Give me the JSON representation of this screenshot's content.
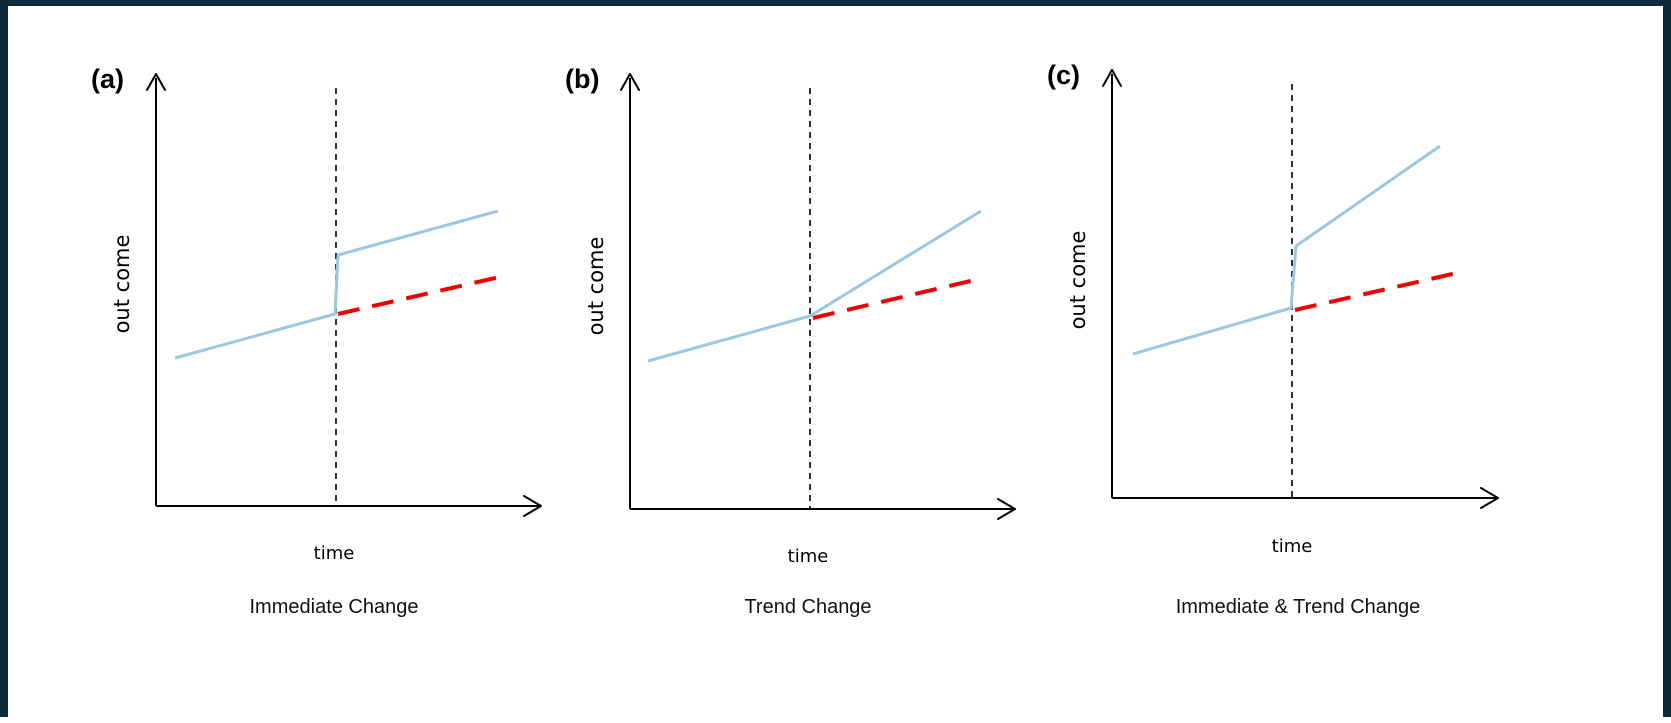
{
  "panels": [
    {
      "id": "a",
      "label": "(a)",
      "ylabel": "out come",
      "xlabel": "time",
      "caption": "Immediate Change",
      "type": "immediate"
    },
    {
      "id": "b",
      "label": "(b)",
      "ylabel": "out come",
      "xlabel": "time",
      "caption": "Trend Change",
      "type": "trend"
    },
    {
      "id": "c",
      "label": "(c)",
      "ylabel": "out come",
      "xlabel": "time",
      "caption": "Immediate & Trend Change",
      "type": "immediate-and-trend"
    }
  ],
  "colors": {
    "frame": "#0f2a3b",
    "observed_line": "#9cc7e0",
    "counterfactual_line": "#ee0000"
  }
}
